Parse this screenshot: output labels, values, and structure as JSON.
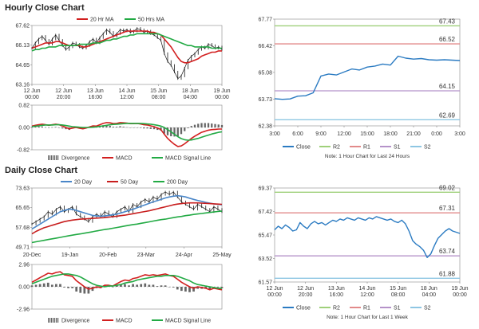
{
  "titles": {
    "hourly": "Hourly Close Chart",
    "daily": "Daily Close Chart"
  },
  "colors": {
    "close": "#1a1a1a",
    "ma_short": "#d21f1f",
    "ma_long": "#22aa44",
    "daily_ma20": "#4a86c8",
    "daily_ma50": "#c81e1e",
    "daily_ma200": "#22aa44",
    "divergence": "#666666",
    "macd": "#d21f1f",
    "signal": "#22aa44",
    "intraday_close": "#2b7bc2",
    "r2": "#9fd07a",
    "r1": "#e28a8a",
    "s1": "#b592c9",
    "s2": "#8ec6e3",
    "axis": "#888888",
    "grid": "#dddddd"
  },
  "chart_data": [
    {
      "id": "hourly_price",
      "type": "line",
      "title": "Hourly Close Chart",
      "legend": [
        "20 Hr MA",
        "50 Hrs MA"
      ],
      "ylim": [
        63.16,
        67.62
      ],
      "yticks": [
        "67.62",
        "66.13",
        "64.65",
        "63.16"
      ],
      "xticks": [
        "12 Jun\n00:00",
        "12 Jun\n20:00",
        "13 Jun\n16:00",
        "14 Jun\n12:00",
        "15 Jun\n08:00",
        "18 Jun\n04:00",
        "19 Jun\n00:00"
      ],
      "close": [
        65.9,
        66.3,
        66.6,
        66.8,
        66.5,
        66.2,
        66.6,
        66.9,
        66.5,
        66.1,
        65.8,
        66.0,
        66.3,
        66.2,
        66.0,
        65.9,
        66.1,
        66.4,
        66.6,
        66.3,
        66.7,
        67.0,
        67.3,
        67.1,
        66.8,
        67.0,
        67.3,
        67.2,
        67.3,
        67.1,
        67.2,
        67.4,
        67.3,
        67.1,
        67.2,
        67.0,
        66.9,
        66.7,
        66.5,
        65.5,
        64.9,
        64.6,
        64.1,
        63.6,
        63.8,
        64.4,
        65.0,
        65.3,
        65.5,
        65.8,
        66.0,
        65.9,
        66.2,
        66.1,
        65.9,
        66.0,
        65.8
      ],
      "ma_short": [
        65.9,
        66.0,
        66.1,
        66.2,
        66.3,
        66.3,
        66.3,
        66.4,
        66.4,
        66.3,
        66.2,
        66.1,
        66.1,
        66.1,
        66.1,
        66.0,
        66.0,
        66.1,
        66.2,
        66.3,
        66.4,
        66.5,
        66.6,
        66.7,
        66.8,
        66.9,
        67.0,
        67.1,
        67.2,
        67.2,
        67.2,
        67.2,
        67.2,
        67.2,
        67.2,
        67.1,
        67.1,
        67.0,
        66.9,
        66.6,
        66.3,
        66.0,
        65.6,
        65.2,
        64.9,
        64.8,
        64.8,
        64.9,
        65.0,
        65.1,
        65.3,
        65.4,
        65.5,
        65.6,
        65.6,
        65.7,
        65.7
      ],
      "ma_long": [
        65.7,
        65.8,
        65.8,
        65.9,
        65.9,
        66.0,
        66.0,
        66.0,
        66.1,
        66.1,
        66.1,
        66.1,
        66.1,
        66.1,
        66.2,
        66.2,
        66.2,
        66.2,
        66.3,
        66.3,
        66.3,
        66.4,
        66.5,
        66.5,
        66.6,
        66.6,
        66.7,
        66.8,
        66.8,
        66.9,
        66.9,
        67.0,
        67.0,
        67.0,
        67.0,
        67.0,
        67.0,
        67.0,
        66.9,
        66.8,
        66.7,
        66.6,
        66.5,
        66.4,
        66.3,
        66.2,
        66.1,
        66.1,
        66.0,
        66.0,
        66.0,
        66.0,
        66.0,
        65.9,
        65.9,
        65.9,
        65.9
      ]
    },
    {
      "id": "hourly_macd",
      "type": "line",
      "ylim": [
        -0.82,
        0.82
      ],
      "yticks": [
        "0.82",
        "0.00",
        "-0.82"
      ],
      "legend": [
        "Divergence",
        "MACD",
        "MACD Signal Line"
      ],
      "macd": [
        0.05,
        0.08,
        0.1,
        0.12,
        0.1,
        0.08,
        0.1,
        0.12,
        0.1,
        0.05,
        0.0,
        -0.05,
        -0.02,
        0.0,
        -0.03,
        -0.05,
        -0.02,
        0.02,
        0.06,
        0.05,
        0.1,
        0.15,
        0.18,
        0.17,
        0.14,
        0.15,
        0.18,
        0.17,
        0.16,
        0.14,
        0.14,
        0.15,
        0.13,
        0.1,
        0.09,
        0.06,
        0.03,
        -0.02,
        -0.08,
        -0.25,
        -0.4,
        -0.52,
        -0.62,
        -0.7,
        -0.68,
        -0.6,
        -0.5,
        -0.4,
        -0.32,
        -0.25,
        -0.18,
        -0.14,
        -0.1,
        -0.08,
        -0.07,
        -0.06,
        -0.06
      ],
      "signal": [
        0.03,
        0.05,
        0.06,
        0.08,
        0.09,
        0.09,
        0.09,
        0.1,
        0.1,
        0.09,
        0.07,
        0.05,
        0.03,
        0.02,
        0.01,
        0.0,
        0.0,
        0.0,
        0.01,
        0.02,
        0.04,
        0.06,
        0.08,
        0.1,
        0.11,
        0.12,
        0.13,
        0.14,
        0.15,
        0.15,
        0.15,
        0.15,
        0.15,
        0.14,
        0.13,
        0.12,
        0.1,
        0.08,
        0.05,
        0.0,
        -0.08,
        -0.16,
        -0.25,
        -0.34,
        -0.41,
        -0.45,
        -0.47,
        -0.46,
        -0.43,
        -0.4,
        -0.36,
        -0.32,
        -0.28,
        -0.24,
        -0.21,
        -0.18,
        -0.16
      ]
    },
    {
      "id": "hourly_intraday",
      "type": "line",
      "note": "Note: 1 Hour Chart for Last 24 Hours",
      "ylim": [
        62.38,
        67.77
      ],
      "yticks": [
        "67.77",
        "66.42",
        "65.08",
        "63.73",
        "62.38"
      ],
      "xticks": [
        "3:00",
        "6:00",
        "9:00",
        "12:00",
        "15:00",
        "18:00",
        "21:00",
        "0:00",
        "3:00"
      ],
      "legend": [
        "Close",
        "R2",
        "R1",
        "S1",
        "S2"
      ],
      "levels": {
        "R2": 67.43,
        "R1": 66.52,
        "S1": 64.15,
        "S2": 62.69
      },
      "level_labels": {
        "R2": "67.43",
        "R1": "66.52",
        "S1": "64.15",
        "S2": "62.69"
      },
      "close": [
        63.75,
        63.72,
        63.74,
        63.88,
        63.9,
        64.05,
        64.9,
        65.0,
        64.95,
        65.1,
        65.25,
        65.2,
        65.35,
        65.4,
        65.5,
        65.45,
        65.9,
        65.8,
        65.75,
        65.78,
        65.72,
        65.7,
        65.72,
        65.7,
        65.68
      ]
    },
    {
      "id": "daily_price",
      "type": "line",
      "title": "Daily Close Chart",
      "legend": [
        "20 Day",
        "50 Day",
        "200 Day"
      ],
      "ylim": [
        49.71,
        73.63
      ],
      "yticks": [
        "73.63",
        "65.65",
        "57.68",
        "49.71"
      ],
      "xticks": [
        "20-Dec",
        "19-Jan",
        "20-Feb",
        "23-Mar",
        "24-Apr",
        "25-May"
      ],
      "close": [
        59,
        60,
        61,
        62,
        64,
        63,
        65,
        66,
        64,
        65,
        66,
        63,
        62,
        61,
        60,
        62,
        63,
        62,
        64,
        63,
        62,
        64,
        65,
        66,
        64,
        67,
        66,
        68,
        69,
        68,
        70,
        69,
        71,
        72,
        71,
        72,
        70,
        68,
        67,
        66,
        65,
        67,
        66,
        65,
        64,
        66,
        65,
        64
      ],
      "ma20": [
        57,
        58,
        59,
        60,
        61,
        62,
        63,
        64,
        64.5,
        65,
        65,
        64.5,
        64,
        63.5,
        63,
        62.5,
        62.3,
        62.2,
        62.3,
        62.5,
        62.8,
        63,
        63.5,
        64,
        64.5,
        65,
        65.6,
        66.2,
        66.8,
        67.4,
        68,
        68.5,
        69,
        69.6,
        70,
        70.3,
        70.5,
        70.3,
        70,
        69.5,
        69,
        68.6,
        68.2,
        67.8,
        67.5,
        67.2,
        67,
        66.8
      ],
      "ma50": [
        55,
        56,
        56.8,
        57.5,
        58,
        58.5,
        59,
        59.5,
        60,
        60.3,
        60.6,
        60.8,
        61,
        61.1,
        61.2,
        61.3,
        61.4,
        61.5,
        61.6,
        61.8,
        62,
        62.2,
        62.4,
        62.6,
        62.9,
        63.2,
        63.5,
        63.8,
        64.1,
        64.4,
        64.8,
        65.2,
        65.6,
        66,
        66.4,
        66.8,
        67.1,
        67.3,
        67.5,
        67.6,
        67.6,
        67.6,
        67.5,
        67.4,
        67.3,
        67.2,
        67.1,
        67
      ],
      "ma200": [
        51.5,
        51.8,
        52.1,
        52.4,
        52.7,
        53,
        53.3,
        53.6,
        53.9,
        54.2,
        54.5,
        54.8,
        55,
        55.3,
        55.6,
        55.9,
        56.2,
        56.5,
        56.8,
        57,
        57.3,
        57.6,
        57.9,
        58.2,
        58.5,
        58.8,
        59,
        59.3,
        59.6,
        59.9,
        60.2,
        60.5,
        60.8,
        61,
        61.3,
        61.6,
        61.9,
        62.1,
        62.4,
        62.6,
        62.9,
        63.1,
        63.3,
        63.5,
        63.7,
        63.9,
        64.1,
        64.3
      ]
    },
    {
      "id": "daily_macd",
      "type": "line",
      "ylim": [
        -2.96,
        2.96
      ],
      "yticks": [
        "2.96",
        "0.00",
        "-2.96"
      ],
      "legend": [
        "Divergence",
        "MACD",
        "MACD Signal Line"
      ],
      "macd": [
        0.6,
        0.9,
        1.2,
        1.5,
        1.8,
        1.7,
        1.9,
        2.0,
        1.6,
        1.5,
        1.4,
        0.8,
        0.4,
        0.0,
        -0.3,
        -0.2,
        0.0,
        -0.1,
        0.2,
        0.2,
        0.1,
        0.4,
        0.7,
        0.9,
        0.8,
        1.1,
        1.2,
        1.4,
        1.6,
        1.5,
        1.6,
        1.5,
        1.6,
        1.7,
        1.5,
        1.4,
        1.0,
        0.6,
        0.3,
        0.0,
        -0.2,
        0.0,
        -0.1,
        -0.2,
        -0.4,
        -0.2,
        -0.3,
        -0.4
      ],
      "signal": [
        0.4,
        0.6,
        0.8,
        1.0,
        1.2,
        1.4,
        1.5,
        1.6,
        1.7,
        1.7,
        1.6,
        1.5,
        1.3,
        1.0,
        0.7,
        0.4,
        0.2,
        0.1,
        0.0,
        0.1,
        0.1,
        0.2,
        0.3,
        0.5,
        0.6,
        0.7,
        0.9,
        1.0,
        1.1,
        1.2,
        1.3,
        1.4,
        1.4,
        1.5,
        1.5,
        1.5,
        1.4,
        1.2,
        1.0,
        0.8,
        0.5,
        0.3,
        0.2,
        0.1,
        0.0,
        -0.1,
        -0.2,
        -0.2
      ]
    },
    {
      "id": "daily_intraday",
      "type": "line",
      "note": "Note: 1 Hour Chart for Last 1 Week",
      "ylim": [
        61.57,
        69.37
      ],
      "yticks": [
        "69.37",
        "67.42",
        "65.47",
        "63.52",
        "61.57"
      ],
      "xticks": [
        "12 Jun\n00:00",
        "12 Jun\n20:00",
        "13 Jun\n16:00",
        "14 Jun\n12:00",
        "15 Jun\n08:00",
        "18 Jun\n04:00",
        "19 Jun\n00:00"
      ],
      "legend": [
        "Close",
        "R2",
        "R1",
        "S1",
        "S2"
      ],
      "levels": {
        "R2": 69.02,
        "R1": 67.31,
        "S1": 63.74,
        "S2": 61.88
      },
      "level_labels": {
        "R2": "69.02",
        "R1": "67.31",
        "S1": "63.74",
        "S2": "61.88"
      },
      "close": [
        65.9,
        66.2,
        66.0,
        66.3,
        66.1,
        65.8,
        65.9,
        66.5,
        66.2,
        66.0,
        66.4,
        66.6,
        66.4,
        66.5,
        66.3,
        66.5,
        66.7,
        66.6,
        66.8,
        66.7,
        66.9,
        66.8,
        66.7,
        66.9,
        66.8,
        66.7,
        66.9,
        66.8,
        67.0,
        66.9,
        66.8,
        66.7,
        66.8,
        66.6,
        66.5,
        66.7,
        66.4,
        65.8,
        65.0,
        64.7,
        64.5,
        64.2,
        63.6,
        63.9,
        64.6,
        65.2,
        65.5,
        65.8,
        66.0,
        65.8,
        65.7,
        65.6
      ]
    }
  ]
}
